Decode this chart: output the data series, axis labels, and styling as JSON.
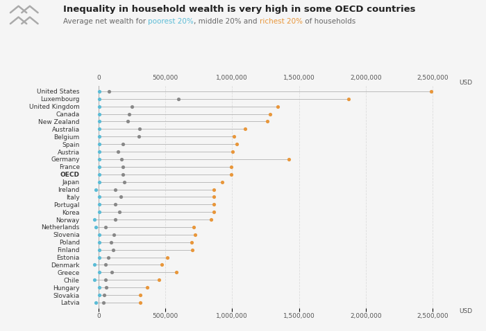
{
  "title": "Inequality in household wealth is very high in some OECD countries",
  "subtitle_parts": [
    {
      "text": "Average net wealth for ",
      "color": "#666666"
    },
    {
      "text": "poorest 20%",
      "color": "#5bbcd6"
    },
    {
      "text": ", middle 20% and ",
      "color": "#666666"
    },
    {
      "text": "richest 20%",
      "color": "#e8963a"
    },
    {
      "text": " of households",
      "color": "#666666"
    }
  ],
  "xlim": [
    -100000,
    2700000
  ],
  "xticks": [
    0,
    500000,
    1000000,
    1500000,
    2000000,
    2500000
  ],
  "xtick_labels": [
    "0",
    "500,000",
    "1,000,000",
    "1,500,000",
    "2,000,000",
    "2,500,000"
  ],
  "countries": [
    "United States",
    "Luxembourg",
    "United Kingdom",
    "Canada",
    "New Zealand",
    "Australia",
    "Belgium",
    "Spain",
    "Austria",
    "Germany",
    "France",
    "OECD",
    "Japan",
    "Ireland",
    "Italy",
    "Portugal",
    "Korea",
    "Norway",
    "Netherlands",
    "Slovenia",
    "Poland",
    "Finland",
    "Estonia",
    "Denmark",
    "Greece",
    "Chile",
    "Hungary",
    "Slovakia",
    "Latvia"
  ],
  "poorest": [
    4000,
    4000,
    4000,
    4000,
    4000,
    4000,
    4000,
    4000,
    4000,
    4000,
    4000,
    4000,
    4000,
    -22000,
    4000,
    4000,
    4000,
    -28000,
    -22000,
    4000,
    4000,
    4000,
    4000,
    -32000,
    4000,
    -32000,
    4000,
    4000,
    -22000
  ],
  "middle": [
    77000,
    600000,
    250000,
    230000,
    220000,
    310000,
    300000,
    185000,
    145000,
    175000,
    185000,
    185000,
    195000,
    125000,
    165000,
    125000,
    155000,
    125000,
    55000,
    115000,
    95000,
    110000,
    75000,
    55000,
    100000,
    55000,
    60000,
    45000,
    40000
  ],
  "richest": [
    2490000,
    1870000,
    1340000,
    1285000,
    1265000,
    1095000,
    1015000,
    1035000,
    1005000,
    1425000,
    995000,
    995000,
    925000,
    865000,
    865000,
    865000,
    865000,
    845000,
    715000,
    725000,
    695000,
    705000,
    515000,
    475000,
    585000,
    455000,
    365000,
    315000,
    315000
  ],
  "poorest_color": "#5bbcd6",
  "middle_color": "#888888",
  "richest_color": "#e8963a",
  "line_color": "#bbbbbb",
  "bg_color": "#f5f5f5",
  "grid_color": "#dddddd",
  "title_fontsize": 9.5,
  "subtitle_fontsize": 7.5,
  "tick_fontsize": 6.5,
  "country_fontsize": 6.5,
  "dot_size": 14
}
